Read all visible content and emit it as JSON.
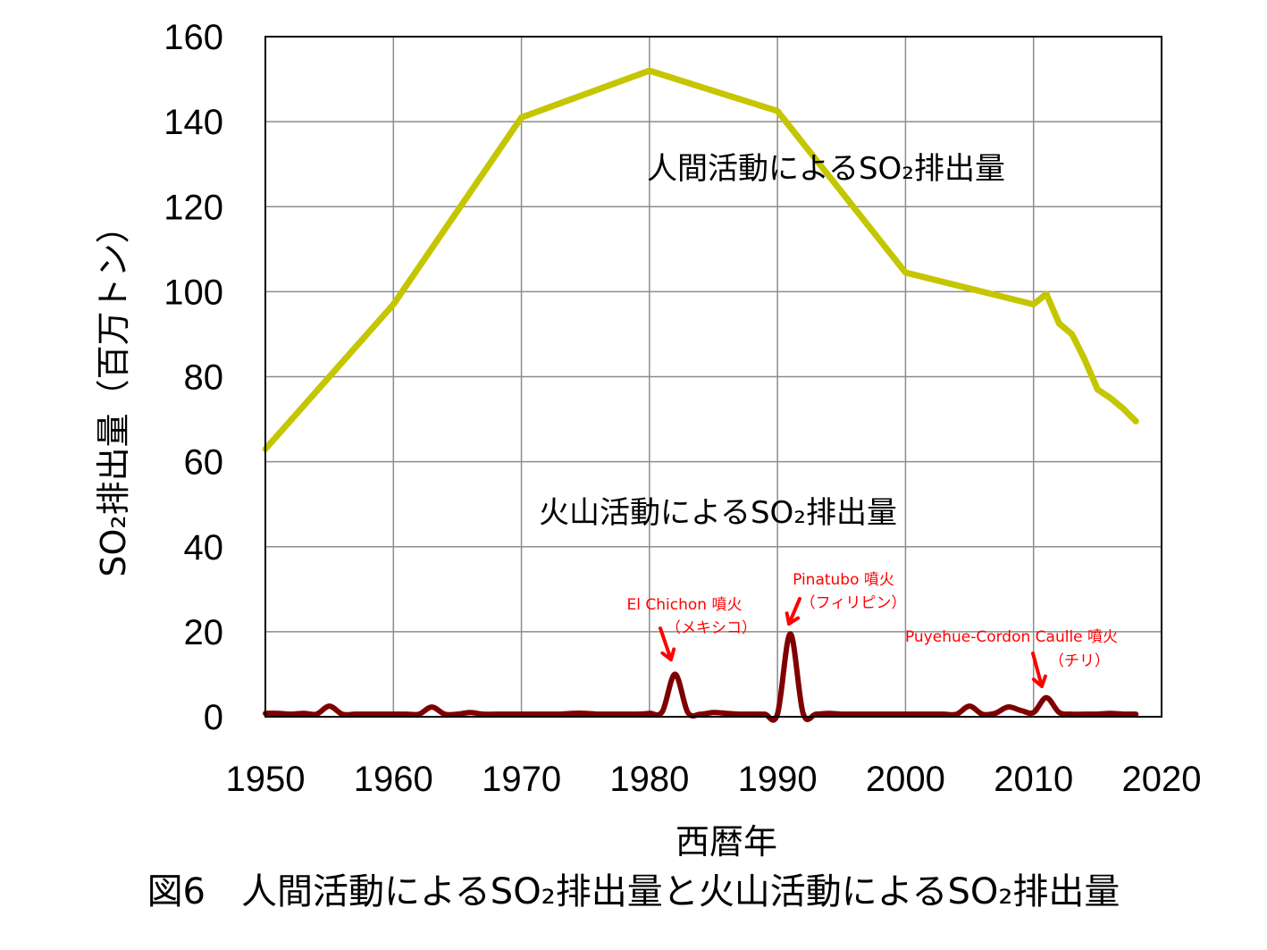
{
  "chart_data": {
    "type": "line",
    "xlabel": "西暦年",
    "ylabel": "SO₂排出量（百万トン）",
    "xlim": [
      1950,
      2020
    ],
    "ylim": [
      0,
      160
    ],
    "x_ticks": [
      "1950",
      "1960",
      "1970",
      "1980",
      "1990",
      "2000",
      "2010",
      "2020"
    ],
    "y_ticks": [
      "0",
      "20",
      "40",
      "60",
      "80",
      "100",
      "120",
      "140",
      "160"
    ],
    "grid": true,
    "series": [
      {
        "name": "人間活動によるSO₂排出量",
        "color": "#c5c500",
        "points": [
          [
            1950,
            63
          ],
          [
            1960,
            97
          ],
          [
            1970,
            141
          ],
          [
            1980,
            152
          ],
          [
            1990,
            142.5
          ],
          [
            2000,
            104.5
          ],
          [
            2010,
            97
          ],
          [
            2011,
            99.5
          ],
          [
            2012,
            92.5
          ],
          [
            2013,
            90
          ],
          [
            2014,
            84
          ],
          [
            2015,
            77
          ],
          [
            2016,
            75
          ],
          [
            2017,
            72.5
          ],
          [
            2018,
            69.5
          ]
        ]
      },
      {
        "name": "火山活動によるSO₂排出量",
        "color": "#7f0000",
        "points": [
          [
            1950,
            0.8
          ],
          [
            1951,
            0.8
          ],
          [
            1952,
            0.6
          ],
          [
            1953,
            0.8
          ],
          [
            1954,
            0.6
          ],
          [
            1955,
            2.5
          ],
          [
            1956,
            0.6
          ],
          [
            1957,
            0.6
          ],
          [
            1958,
            0.6
          ],
          [
            1959,
            0.6
          ],
          [
            1960,
            0.6
          ],
          [
            1961,
            0.6
          ],
          [
            1962,
            0.6
          ],
          [
            1963,
            2.3
          ],
          [
            1964,
            0.6
          ],
          [
            1965,
            0.6
          ],
          [
            1966,
            1.0
          ],
          [
            1967,
            0.6
          ],
          [
            1968,
            0.6
          ],
          [
            1969,
            0.6
          ],
          [
            1970,
            0.6
          ],
          [
            1971,
            0.6
          ],
          [
            1972,
            0.6
          ],
          [
            1973,
            0.6
          ],
          [
            1974,
            0.8
          ],
          [
            1975,
            0.8
          ],
          [
            1976,
            0.6
          ],
          [
            1977,
            0.6
          ],
          [
            1978,
            0.6
          ],
          [
            1979,
            0.6
          ],
          [
            1980,
            0.8
          ],
          [
            1981,
            1.2
          ],
          [
            1982,
            10.0
          ],
          [
            1983,
            1.0
          ],
          [
            1984,
            0.6
          ],
          [
            1985,
            1.0
          ],
          [
            1986,
            0.8
          ],
          [
            1987,
            0.6
          ],
          [
            1988,
            0.6
          ],
          [
            1989,
            0.6
          ],
          [
            1990,
            0.6
          ],
          [
            1991,
            19.5
          ],
          [
            1992,
            0.8
          ],
          [
            1993,
            0.6
          ],
          [
            1994,
            0.8
          ],
          [
            1995,
            0.6
          ],
          [
            1996,
            0.6
          ],
          [
            1997,
            0.6
          ],
          [
            1998,
            0.6
          ],
          [
            1999,
            0.6
          ],
          [
            2000,
            0.6
          ],
          [
            2001,
            0.6
          ],
          [
            2002,
            0.6
          ],
          [
            2003,
            0.6
          ],
          [
            2004,
            0.6
          ],
          [
            2005,
            2.5
          ],
          [
            2006,
            0.6
          ],
          [
            2007,
            0.8
          ],
          [
            2008,
            2.3
          ],
          [
            2009,
            1.5
          ],
          [
            2010,
            1.0
          ],
          [
            2011,
            4.5
          ],
          [
            2012,
            1.0
          ],
          [
            2013,
            0.6
          ],
          [
            2014,
            0.6
          ],
          [
            2015,
            0.6
          ],
          [
            2016,
            0.8
          ],
          [
            2017,
            0.6
          ],
          [
            2018,
            0.6
          ]
        ]
      }
    ],
    "annotations": [
      {
        "id": "el-chichon",
        "lines": [
          "El Chichon 噴火",
          "（メキシコ）"
        ],
        "arrow_to": [
          1982,
          10
        ]
      },
      {
        "id": "pinatubo",
        "lines": [
          "Pinatubo 噴火",
          "（フィリピン）"
        ],
        "arrow_to": [
          1991,
          19.5
        ]
      },
      {
        "id": "puyehue",
        "lines": [
          "Puyehue-Cordon Caulle 噴火",
          "（チリ）"
        ],
        "arrow_to": [
          2011,
          4.5
        ]
      }
    ],
    "annotation_color": "#ff0000"
  },
  "caption": "図6　人間活動によるSO₂排出量と火山活動によるSO₂排出量"
}
